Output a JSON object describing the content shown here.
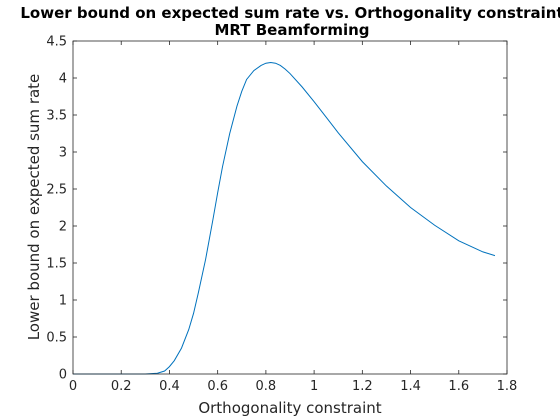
{
  "chart_data": {
    "type": "line",
    "title": "Lower bound on expected sum rate vs. Orthogonality constraint",
    "subtitle": "MRT Beamforming",
    "xlabel": "Orthogonality constraint",
    "ylabel": "Lower bound on expected sum rate",
    "xlim": [
      0,
      1.8
    ],
    "ylim": [
      0,
      4.5
    ],
    "xticks": [
      "0",
      "0.2",
      "0.4",
      "0.6",
      "0.8",
      "1",
      "1.2",
      "1.4",
      "1.6",
      "1.8"
    ],
    "yticks": [
      "0",
      "0.5",
      "1",
      "1.5",
      "2",
      "2.5",
      "3",
      "3.5",
      "4",
      "4.5"
    ],
    "grid": false,
    "line_color": "#0072bd",
    "series": [
      {
        "x": [
          0,
          0.1,
          0.2,
          0.3,
          0.35,
          0.38,
          0.4,
          0.42,
          0.45,
          0.48,
          0.5,
          0.52,
          0.55,
          0.58,
          0.6,
          0.62,
          0.65,
          0.68,
          0.7,
          0.72,
          0.75,
          0.78,
          0.8,
          0.82,
          0.84,
          0.86,
          0.88,
          0.9,
          0.95,
          1.0,
          1.05,
          1.1,
          1.2,
          1.3,
          1.4,
          1.5,
          1.6,
          1.7,
          1.75
        ],
        "y": [
          0,
          0,
          0,
          0,
          0.01,
          0.04,
          0.1,
          0.18,
          0.35,
          0.6,
          0.82,
          1.1,
          1.55,
          2.08,
          2.45,
          2.8,
          3.25,
          3.62,
          3.82,
          3.98,
          4.1,
          4.17,
          4.2,
          4.21,
          4.2,
          4.17,
          4.12,
          4.06,
          3.88,
          3.68,
          3.47,
          3.26,
          2.87,
          2.54,
          2.25,
          2.01,
          1.8,
          1.65,
          1.6
        ]
      }
    ]
  }
}
